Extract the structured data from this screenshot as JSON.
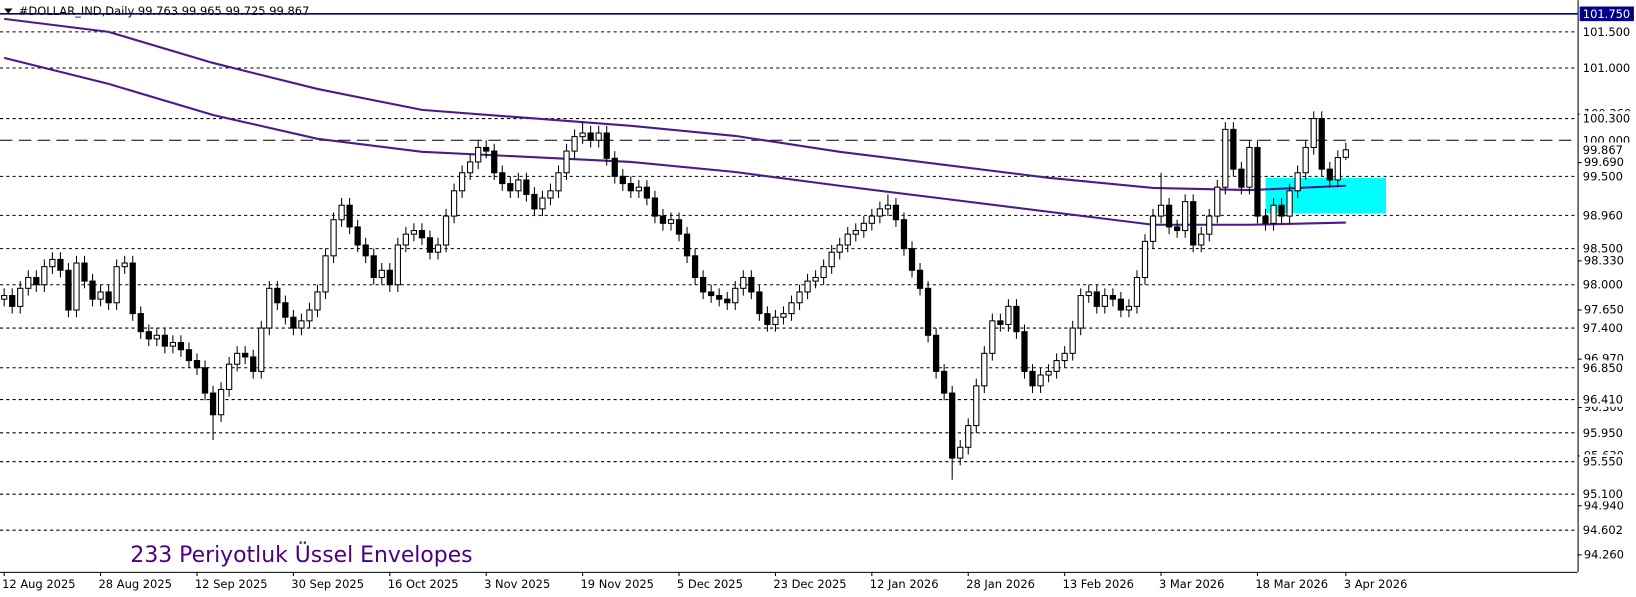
{
  "chart_data": {
    "type": "candlestick",
    "title": "#DOLLAR_IND,Daily  99.763 99.965 99.725 99.867",
    "annotation": "233 Periyotluk Üssel Envelopes",
    "annotation_color": "#4b0082",
    "categories": [
      "12 Aug 2025",
      null,
      null,
      null,
      null,
      null,
      null,
      null,
      null,
      null,
      null,
      null,
      "28 Aug 2025",
      null,
      null,
      null,
      null,
      null,
      null,
      null,
      null,
      null,
      null,
      null,
      "12 Sep 2025",
      null,
      null,
      null,
      null,
      null,
      null,
      null,
      null,
      null,
      null,
      null,
      "30 Sep 2025",
      null,
      null,
      null,
      null,
      null,
      null,
      null,
      null,
      null,
      null,
      null,
      "16 Oct 2025",
      null,
      null,
      null,
      null,
      null,
      null,
      null,
      null,
      null,
      null,
      null,
      "3 Nov 2025",
      null,
      null,
      null,
      null,
      null,
      null,
      null,
      null,
      null,
      null,
      null,
      "19 Nov 2025",
      null,
      null,
      null,
      null,
      null,
      null,
      null,
      null,
      null,
      null,
      null,
      "5 Dec 2025",
      null,
      null,
      null,
      null,
      null,
      null,
      null,
      null,
      null,
      null,
      null,
      "23 Dec 2025",
      null,
      null,
      null,
      null,
      null,
      null,
      null,
      null,
      null,
      null,
      null,
      "12 Jan 2026",
      null,
      null,
      null,
      null,
      null,
      null,
      null,
      null,
      null,
      null,
      null,
      "28 Jan 2026",
      null,
      null,
      null,
      null,
      null,
      null,
      null,
      null,
      null,
      null,
      null,
      "13 Feb 2026",
      null,
      null,
      null,
      null,
      null,
      null,
      null,
      null,
      null,
      null,
      null,
      "3 Mar 2026",
      null,
      null,
      null,
      null,
      null,
      null,
      null,
      null,
      null,
      null,
      null,
      "18 Mar 2026",
      null,
      null,
      null,
      null,
      null,
      null,
      null,
      null,
      null,
      null,
      "3 Apr 2026"
    ],
    "open": [
      97.8,
      97.85,
      97.7,
      97.95,
      98.1,
      98.0,
      98.25,
      98.35,
      98.2,
      97.65,
      98.3,
      98.05,
      97.8,
      97.9,
      97.75,
      98.25,
      98.3,
      97.6,
      97.35,
      97.25,
      97.3,
      97.15,
      97.2,
      97.1,
      96.95,
      96.85,
      96.5,
      96.2,
      96.55,
      96.9,
      97.05,
      97.0,
      96.8,
      97.4,
      97.95,
      97.75,
      97.55,
      97.4,
      97.5,
      97.65,
      97.9,
      98.4,
      98.9,
      99.1,
      98.8,
      98.55,
      98.4,
      98.1,
      98.2,
      98.0,
      98.55,
      98.7,
      98.75,
      98.65,
      98.45,
      98.55,
      98.95,
      99.3,
      99.55,
      99.7,
      99.9,
      99.85,
      99.55,
      99.4,
      99.3,
      99.45,
      99.25,
      99.05,
      99.2,
      99.3,
      99.55,
      99.85,
      100.05,
      100.1,
      100.0,
      100.1,
      99.75,
      99.5,
      99.4,
      99.3,
      99.35,
      99.2,
      98.95,
      98.85,
      98.9,
      98.7,
      98.4,
      98.1,
      97.9,
      97.85,
      97.8,
      97.75,
      97.95,
      98.1,
      97.9,
      97.6,
      97.45,
      97.55,
      97.6,
      97.75,
      97.9,
      98.05,
      98.1,
      98.25,
      98.45,
      98.55,
      98.7,
      98.75,
      98.85,
      98.95,
      99.05,
      99.1,
      98.9,
      98.5,
      98.2,
      97.95,
      97.3,
      96.8,
      96.5,
      95.6,
      95.75,
      96.05,
      96.6,
      97.05,
      97.5,
      97.45,
      97.7,
      97.35,
      96.8,
      96.6,
      96.75,
      96.8,
      96.95,
      97.05,
      97.4,
      97.85,
      97.9,
      97.7,
      97.85,
      97.8,
      97.65,
      97.7,
      98.1,
      98.6,
      98.95,
      99.1,
      98.8,
      98.75,
      99.15,
      98.55,
      98.7,
      98.95,
      99.35,
      100.15,
      99.6,
      99.35,
      99.9,
      98.95,
      98.85,
      99.1,
      98.95,
      99.3,
      99.55,
      99.9,
      100.3,
      99.6,
      99.45,
      99.763
    ],
    "high": [
      97.95,
      97.95,
      98.05,
      98.2,
      98.2,
      98.35,
      98.45,
      98.45,
      98.3,
      98.4,
      98.4,
      98.15,
      98.0,
      98.0,
      98.35,
      98.4,
      98.4,
      97.7,
      97.45,
      97.4,
      97.4,
      97.3,
      97.3,
      97.2,
      97.05,
      96.95,
      96.6,
      96.65,
      97.0,
      97.15,
      97.15,
      97.1,
      97.5,
      98.05,
      98.05,
      97.85,
      97.65,
      97.6,
      97.75,
      98.0,
      98.5,
      99.0,
      99.2,
      99.2,
      98.9,
      98.65,
      98.5,
      98.3,
      98.3,
      98.65,
      98.8,
      98.85,
      98.85,
      98.75,
      98.65,
      99.05,
      99.4,
      99.65,
      99.8,
      100.0,
      100.0,
      99.95,
      99.65,
      99.5,
      99.55,
      99.55,
      99.35,
      99.3,
      99.4,
      99.65,
      99.95,
      100.15,
      100.25,
      100.2,
      100.2,
      100.2,
      99.85,
      99.6,
      99.5,
      99.45,
      99.45,
      99.3,
      99.05,
      99.0,
      99.0,
      98.8,
      98.5,
      98.2,
      98.0,
      97.95,
      97.9,
      98.05,
      98.2,
      98.2,
      98.0,
      97.7,
      97.65,
      97.7,
      97.85,
      98.0,
      98.15,
      98.2,
      98.35,
      98.55,
      98.65,
      98.8,
      98.85,
      98.95,
      99.05,
      99.15,
      99.25,
      99.2,
      99.0,
      98.6,
      98.3,
      98.05,
      97.4,
      96.9,
      96.6,
      95.85,
      96.15,
      96.7,
      97.15,
      97.6,
      97.6,
      97.8,
      97.8,
      97.45,
      96.9,
      96.85,
      96.9,
      97.05,
      97.15,
      97.5,
      97.95,
      98.0,
      98.0,
      97.95,
      97.95,
      97.9,
      97.8,
      98.2,
      98.7,
      99.05,
      99.55,
      99.2,
      98.9,
      99.25,
      99.25,
      98.8,
      99.05,
      99.45,
      100.25,
      100.25,
      99.7,
      100.0,
      100.0,
      99.05,
      99.2,
      99.2,
      99.4,
      99.65,
      100.0,
      100.4,
      100.4,
      99.7,
      99.86,
      99.965
    ],
    "low": [
      97.7,
      97.6,
      97.6,
      97.85,
      97.9,
      97.9,
      98.15,
      98.1,
      97.55,
      97.55,
      97.95,
      97.7,
      97.7,
      97.65,
      97.65,
      98.15,
      97.5,
      97.25,
      97.15,
      97.15,
      97.05,
      97.05,
      97.0,
      96.85,
      96.75,
      96.4,
      95.85,
      96.1,
      96.45,
      96.8,
      96.9,
      96.7,
      96.7,
      97.3,
      97.65,
      97.45,
      97.3,
      97.3,
      97.4,
      97.55,
      97.8,
      98.3,
      98.8,
      98.7,
      98.45,
      98.3,
      98.0,
      98.0,
      97.9,
      97.9,
      98.45,
      98.6,
      98.55,
      98.35,
      98.35,
      98.45,
      98.85,
      99.2,
      99.45,
      99.6,
      99.75,
      99.45,
      99.3,
      99.2,
      99.2,
      99.15,
      98.95,
      98.95,
      99.1,
      99.2,
      99.45,
      99.75,
      99.95,
      99.9,
      99.9,
      99.65,
      99.4,
      99.3,
      99.2,
      99.2,
      99.1,
      98.85,
      98.75,
      98.75,
      98.6,
      98.3,
      98.0,
      97.8,
      97.75,
      97.7,
      97.65,
      97.65,
      97.85,
      97.8,
      97.5,
      97.35,
      97.35,
      97.45,
      97.5,
      97.65,
      97.8,
      97.95,
      98.0,
      98.15,
      98.35,
      98.45,
      98.6,
      98.65,
      98.75,
      98.85,
      98.95,
      98.8,
      98.4,
      98.1,
      97.85,
      97.2,
      96.7,
      96.4,
      95.3,
      95.5,
      95.65,
      95.95,
      96.5,
      96.95,
      97.35,
      97.35,
      97.25,
      96.7,
      96.5,
      96.5,
      96.65,
      96.7,
      96.85,
      96.95,
      97.3,
      97.75,
      97.6,
      97.6,
      97.7,
      97.55,
      97.55,
      97.6,
      98.0,
      98.5,
      98.85,
      98.7,
      98.65,
      98.65,
      98.45,
      98.45,
      98.6,
      98.85,
      99.25,
      99.5,
      99.25,
      99.25,
      98.85,
      98.75,
      98.75,
      98.85,
      98.85,
      99.2,
      99.45,
      99.8,
      99.5,
      99.35,
      99.35,
      99.725
    ],
    "close": [
      97.85,
      97.7,
      97.95,
      98.1,
      98.0,
      98.25,
      98.35,
      98.2,
      97.65,
      98.3,
      98.05,
      97.8,
      97.9,
      97.75,
      98.25,
      98.3,
      97.6,
      97.35,
      97.25,
      97.3,
      97.15,
      97.2,
      97.1,
      96.95,
      96.85,
      96.5,
      96.2,
      96.55,
      96.9,
      97.05,
      97.0,
      96.8,
      97.4,
      97.95,
      97.75,
      97.55,
      97.4,
      97.5,
      97.65,
      97.9,
      98.4,
      98.9,
      99.1,
      98.8,
      98.55,
      98.4,
      98.1,
      98.2,
      98.0,
      98.55,
      98.7,
      98.75,
      98.65,
      98.45,
      98.55,
      98.95,
      99.3,
      99.55,
      99.7,
      99.9,
      99.85,
      99.55,
      99.4,
      99.3,
      99.45,
      99.25,
      99.05,
      99.2,
      99.3,
      99.55,
      99.85,
      100.05,
      100.1,
      100.0,
      100.1,
      99.75,
      99.5,
      99.4,
      99.3,
      99.35,
      99.2,
      98.95,
      98.85,
      98.9,
      98.7,
      98.4,
      98.1,
      97.9,
      97.85,
      97.8,
      97.75,
      97.95,
      98.1,
      97.9,
      97.6,
      97.45,
      97.55,
      97.6,
      97.75,
      97.9,
      98.05,
      98.1,
      98.25,
      98.45,
      98.55,
      98.7,
      98.75,
      98.85,
      98.95,
      99.05,
      99.1,
      98.9,
      98.5,
      98.2,
      97.95,
      97.3,
      96.8,
      96.5,
      95.6,
      95.75,
      96.05,
      96.6,
      97.05,
      97.5,
      97.45,
      97.7,
      97.35,
      96.8,
      96.6,
      96.75,
      96.8,
      96.95,
      97.05,
      97.4,
      97.85,
      97.9,
      97.7,
      97.85,
      97.8,
      97.65,
      97.7,
      98.1,
      98.6,
      98.95,
      99.1,
      98.8,
      98.75,
      99.15,
      98.55,
      98.7,
      98.95,
      99.35,
      100.15,
      99.6,
      99.35,
      99.9,
      98.95,
      98.85,
      99.1,
      98.95,
      99.3,
      99.55,
      99.9,
      100.3,
      99.6,
      99.45,
      99.76,
      99.867
    ],
    "up_color": "#ffffff",
    "down_color": "#000000",
    "envelopes": [
      {
        "color": "#4b1a8c",
        "x": [
          0,
          13,
          26,
          39,
          52,
          65,
          78,
          91,
          104,
          117,
          130,
          143,
          155,
          167
        ],
        "values": [
          101.68,
          101.5,
          101.07,
          100.71,
          100.42,
          100.31,
          100.2,
          100.06,
          99.84,
          99.66,
          99.48,
          99.34,
          99.31,
          99.37
        ]
      },
      {
        "color": "#4b1a8c",
        "x": [
          0,
          13,
          26,
          39,
          52,
          65,
          78,
          91,
          104,
          117,
          130,
          143,
          155,
          167
        ],
        "values": [
          101.14,
          100.78,
          100.35,
          100.02,
          99.84,
          99.77,
          99.7,
          99.56,
          99.37,
          99.19,
          99.01,
          98.83,
          98.83,
          98.86
        ]
      }
    ],
    "zone": {
      "color": "#00ffff",
      "x": [
        157,
        172
      ],
      "y": [
        99.48,
        98.99
      ]
    },
    "ylim": [
      94.025,
      101.94
    ],
    "yticks": [
      {
        "value": 100.36,
        "label": "100.360"
      },
      {
        "value": 99.69,
        "label": "99.690"
      },
      {
        "value": 98.33,
        "label": "98.330"
      },
      {
        "value": 97.65,
        "label": "97.650"
      },
      {
        "value": 96.97,
        "label": "96.970"
      },
      {
        "value": 96.3,
        "label": "96.300"
      },
      {
        "value": 95.63,
        "label": "95.630"
      },
      {
        "value": 94.94,
        "label": "94.940"
      },
      {
        "value": 94.26,
        "label": "94.260"
      }
    ],
    "levels": [
      {
        "value": 101.5,
        "label": "101.500"
      },
      {
        "value": 101,
        "label": "101.000"
      },
      {
        "value": 100.3,
        "label": "100.300"
      },
      {
        "value": 99.5,
        "label": "99.500"
      },
      {
        "value": 98.96,
        "label": "98.960"
      },
      {
        "value": 98.5,
        "label": "98.500"
      },
      {
        "value": 98,
        "label": "98.000"
      },
      {
        "value": 97.4,
        "label": "97.400"
      },
      {
        "value": 96.85,
        "label": "96.850"
      },
      {
        "value": 96.41,
        "label": "96.410"
      },
      {
        "value": 95.95,
        "label": "95.950"
      },
      {
        "value": 95.55,
        "label": "95.550"
      },
      {
        "value": 95.1,
        "label": "95.100"
      },
      {
        "value": 94.602,
        "label": "94.602"
      }
    ],
    "pivot_line": {
      "value": 100,
      "label": "100.000"
    },
    "top_line": {
      "value": 101.75,
      "label": "101.750",
      "color": "#00008b"
    },
    "last_price": {
      "value": 99.867,
      "label": "99.867"
    }
  }
}
